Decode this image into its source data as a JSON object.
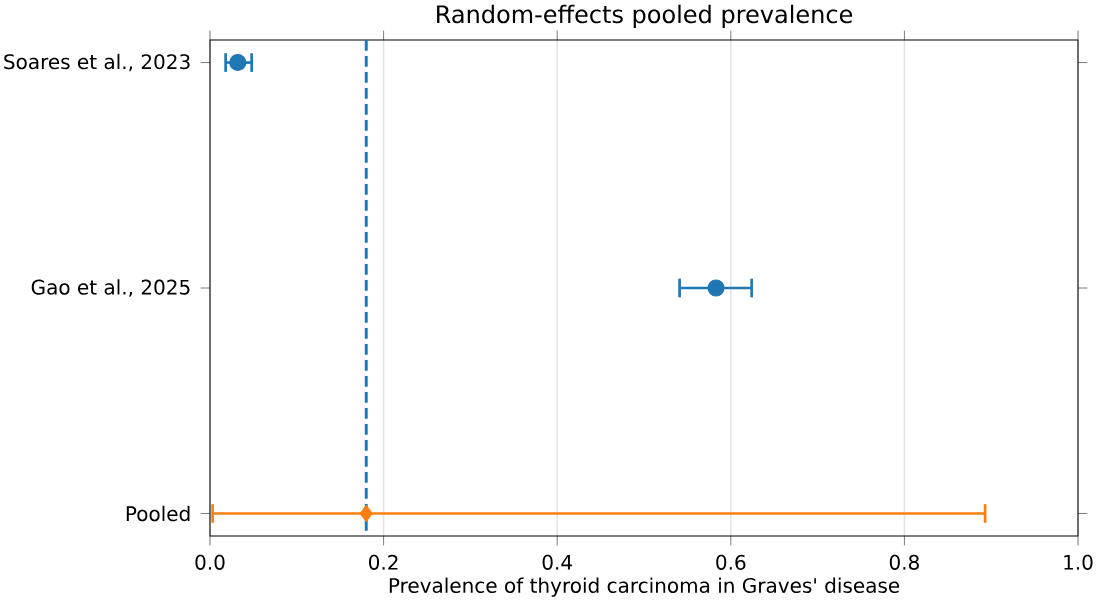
{
  "chart_data": {
    "type": "scatter",
    "orientation": "horizontal",
    "title": "Random-effects pooled prevalence",
    "xlabel": "Prevalence of thyroid carcinoma in Graves' disease",
    "categories": [
      "Soares et al., 2023",
      "Gao et al., 2025",
      "Pooled"
    ],
    "series": [
      {
        "color": "#1f77b4",
        "marker": "circle",
        "values": [
          0.032,
          0.583,
          null
        ],
        "errors": [
          [
            0.018,
            0.048
          ],
          [
            0.541,
            0.624
          ],
          null
        ]
      },
      {
        "color": "#ff7f0e",
        "marker": "diamond",
        "values": [
          null,
          null,
          0.18
        ],
        "errors": [
          null,
          null,
          [
            0.003,
            0.893
          ]
        ]
      }
    ],
    "xlim": [
      0,
      1
    ],
    "xticks": [
      {
        "value": 0,
        "label": "0.0"
      },
      {
        "value": 0.2,
        "label": "0.2"
      },
      {
        "value": 0.4,
        "label": "0.4"
      },
      {
        "value": 0.6,
        "label": "0.6"
      },
      {
        "value": 0.8,
        "label": "0.8"
      },
      {
        "value": 1,
        "label": "1.0"
      }
    ],
    "ref_lines": [
      {
        "axis": "x",
        "value": 0.18,
        "color": "#1f77b4",
        "line_style": "dashed"
      }
    ],
    "grid": "x"
  }
}
